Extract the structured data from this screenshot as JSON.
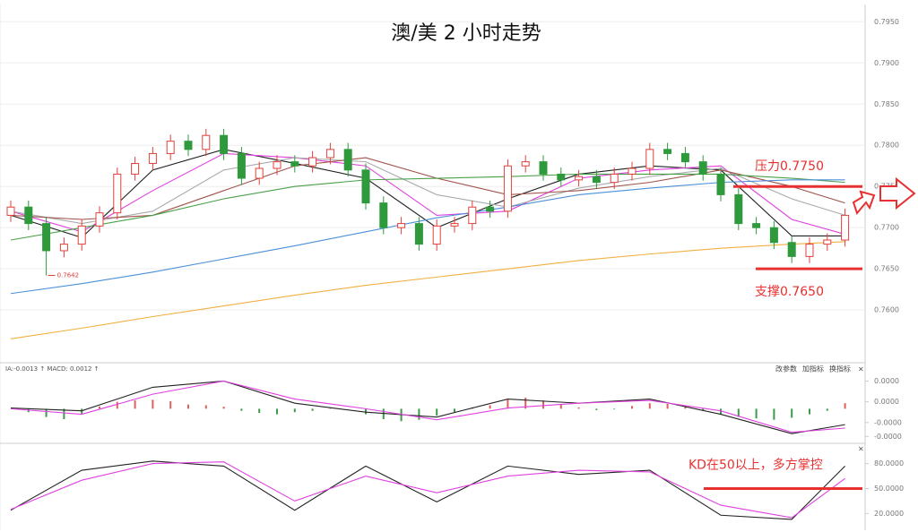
{
  "chart_data": [
    {
      "type": "candlestick",
      "title": "澳/美 2 小时走势",
      "ylim": [
        0.7536,
        0.7971
      ],
      "yticks": [
        {
          "value": 0.795,
          "label": "0.7950"
        },
        {
          "value": 0.79,
          "label": "0.7900"
        },
        {
          "value": 0.785,
          "label": "0.7850"
        },
        {
          "value": 0.78,
          "label": "0.7800"
        },
        {
          "value": 0.775,
          "label": "0.7750"
        },
        {
          "value": 0.77,
          "label": "0.7700"
        },
        {
          "value": 0.765,
          "label": "0.7650"
        },
        {
          "value": 0.76,
          "label": "0.7600"
        }
      ],
      "grid": true,
      "up_color": "#e0403c",
      "down_color": "#2e9a3c",
      "open": [
        0.7715,
        0.7725,
        0.7705,
        0.7672,
        0.768,
        0.7702,
        0.7718,
        0.7765,
        0.7778,
        0.779,
        0.7805,
        0.7795,
        0.7812,
        0.779,
        0.776,
        0.7772,
        0.778,
        0.7775,
        0.7785,
        0.7795,
        0.777,
        0.773,
        0.77,
        0.7705,
        0.768,
        0.7702,
        0.7705,
        0.7725,
        0.772,
        0.7775,
        0.778,
        0.7765,
        0.7758,
        0.7762,
        0.7755,
        0.7765,
        0.7772,
        0.7795,
        0.779,
        0.778,
        0.7765,
        0.774,
        0.7705,
        0.77,
        0.7682,
        0.7665,
        0.768,
        0.7685
      ],
      "high": [
        0.7733,
        0.7733,
        0.7713,
        0.7688,
        0.771,
        0.7726,
        0.7773,
        0.7786,
        0.7798,
        0.7813,
        0.7813,
        0.782,
        0.782,
        0.7798,
        0.778,
        0.7788,
        0.7788,
        0.7793,
        0.7803,
        0.7803,
        0.7778,
        0.7738,
        0.7713,
        0.7713,
        0.771,
        0.7713,
        0.7733,
        0.7733,
        0.7783,
        0.7788,
        0.7788,
        0.7773,
        0.777,
        0.777,
        0.7773,
        0.778,
        0.7803,
        0.7803,
        0.7798,
        0.7788,
        0.7773,
        0.7748,
        0.7713,
        0.7708,
        0.769,
        0.7688,
        0.7693,
        0.7723
      ],
      "low": [
        0.7707,
        0.7697,
        0.7642,
        0.7664,
        0.7672,
        0.7694,
        0.771,
        0.7757,
        0.777,
        0.7782,
        0.7787,
        0.7787,
        0.7782,
        0.7752,
        0.7752,
        0.7764,
        0.7767,
        0.7767,
        0.7777,
        0.7762,
        0.7722,
        0.7692,
        0.7692,
        0.7672,
        0.7672,
        0.7694,
        0.7697,
        0.7712,
        0.7712,
        0.7767,
        0.7757,
        0.775,
        0.775,
        0.7747,
        0.7747,
        0.7757,
        0.7764,
        0.7782,
        0.7772,
        0.7757,
        0.7732,
        0.7697,
        0.7692,
        0.7674,
        0.7657,
        0.7657,
        0.7672,
        0.7677
      ],
      "close": [
        0.7725,
        0.7705,
        0.7672,
        0.768,
        0.7702,
        0.7718,
        0.7765,
        0.7778,
        0.779,
        0.7805,
        0.7795,
        0.7812,
        0.779,
        0.776,
        0.7772,
        0.778,
        0.7775,
        0.7785,
        0.7795,
        0.777,
        0.773,
        0.77,
        0.7705,
        0.768,
        0.7702,
        0.7705,
        0.7725,
        0.772,
        0.7775,
        0.778,
        0.7765,
        0.7758,
        0.7762,
        0.7755,
        0.7765,
        0.7772,
        0.7795,
        0.779,
        0.778,
        0.7765,
        0.774,
        0.7705,
        0.77,
        0.7682,
        0.7665,
        0.768,
        0.7685,
        0.7715
      ],
      "series": [
        {
          "color": "#222222",
          "x": [
            0,
            4,
            8,
            12,
            16,
            20,
            24,
            28,
            32,
            36,
            40,
            44,
            47
          ],
          "values": [
            0.7715,
            0.7688,
            0.777,
            0.7795,
            0.7778,
            0.776,
            0.77,
            0.7735,
            0.7765,
            0.7775,
            0.777,
            0.769,
            0.769
          ]
        },
        {
          "color": "#e040e0",
          "x": [
            0,
            4,
            8,
            12,
            16,
            20,
            24,
            28,
            32,
            36,
            40,
            44,
            47
          ],
          "values": [
            0.772,
            0.7695,
            0.7745,
            0.779,
            0.7785,
            0.7775,
            0.7715,
            0.772,
            0.776,
            0.777,
            0.7775,
            0.771,
            0.7692
          ]
        },
        {
          "color": "#aaaaaa",
          "x": [
            0,
            4,
            8,
            12,
            16,
            20,
            24,
            28,
            32,
            36,
            40,
            44,
            47
          ],
          "values": [
            0.772,
            0.7705,
            0.772,
            0.777,
            0.7785,
            0.778,
            0.774,
            0.7725,
            0.7748,
            0.7762,
            0.7772,
            0.7735,
            0.7715
          ]
        },
        {
          "color": "#a0524a",
          "x": [
            0,
            4,
            8,
            12,
            16,
            20,
            24,
            28,
            32,
            36,
            40,
            44,
            47
          ],
          "values": [
            0.7715,
            0.771,
            0.7715,
            0.7745,
            0.7775,
            0.7785,
            0.776,
            0.774,
            0.7745,
            0.7755,
            0.777,
            0.775,
            0.773
          ]
        },
        {
          "color": "#48a048",
          "x": [
            0,
            4,
            8,
            12,
            16,
            20,
            24,
            28,
            32,
            36,
            40,
            44,
            47
          ],
          "values": [
            0.7685,
            0.77,
            0.7715,
            0.7735,
            0.775,
            0.7758,
            0.776,
            0.7762,
            0.7765,
            0.7765,
            0.7765,
            0.776,
            0.7755
          ]
        },
        {
          "color": "#4a90d8",
          "x": [
            0,
            4,
            8,
            12,
            16,
            20,
            24,
            28,
            32,
            36,
            40,
            44,
            47
          ],
          "values": [
            0.762,
            0.7632,
            0.7646,
            0.7662,
            0.7678,
            0.7695,
            0.7712,
            0.7725,
            0.774,
            0.7748,
            0.7755,
            0.7758,
            0.7758
          ]
        },
        {
          "color": "#f0b040",
          "x": [
            0,
            4,
            8,
            12,
            16,
            20,
            24,
            28,
            32,
            36,
            40,
            44,
            47
          ],
          "values": [
            0.7565,
            0.7578,
            0.7592,
            0.7605,
            0.7618,
            0.763,
            0.764,
            0.765,
            0.766,
            0.7668,
            0.7675,
            0.768,
            0.7683
          ]
        }
      ],
      "low_label": "0.7642",
      "annotations": [
        {
          "text": "压力0.7750",
          "value": 0.775
        },
        {
          "text": "支撑0.7650",
          "value": 0.765
        }
      ],
      "annotation_color": "#e83030"
    },
    {
      "type": "macd",
      "header": "IA:-0.0013 ↑ MACD: 0.0012 ↑",
      "buttons": [
        "改参数",
        "加指标",
        "换指标",
        "×"
      ],
      "ylim": [
        -5e-05,
        6e-05
      ],
      "yticks": [
        {
          "value": 4e-05,
          "label": "0.0000"
        },
        {
          "value": 1e-05,
          "label": "0.0000"
        },
        {
          "value": -2e-05,
          "label": "-0.0000"
        },
        {
          "value": -4e-05,
          "label": "-0.0000"
        }
      ],
      "up_color": "#e0605c",
      "down_color": "#3c9a48",
      "values": [
        0,
        -5e-06,
        -1.2e-05,
        -1.5e-05,
        -8e-06,
        3e-06,
        1e-05,
        1.2e-05,
        1.3e-05,
        1.1e-05,
        6e-06,
        5e-06,
        3e-06,
        -3e-06,
        -6e-06,
        -8e-06,
        -5e-06,
        -3e-06,
        2e-06,
        0,
        -8e-06,
        -1.5e-05,
        -1.8e-05,
        -1.6e-05,
        -1e-05,
        -5e-06,
        2e-06,
        5e-06,
        1.3e-05,
        1.6e-05,
        1.2e-05,
        6e-06,
        2e-06,
        -2e-06,
        -1e-06,
        4e-06,
        8e-06,
        7e-06,
        3e-06,
        -3e-06,
        -8e-06,
        -1.2e-05,
        -1.4e-05,
        -1.6e-05,
        -1.3e-05,
        -8e-06,
        -3e-06,
        8e-06
      ],
      "series": [
        {
          "color": "#222222",
          "x": [
            0,
            4,
            8,
            12,
            16,
            20,
            24,
            28,
            32,
            36,
            40,
            44,
            47
          ],
          "values": [
            1e-06,
            -3e-06,
            3.1e-05,
            4e-05,
            8e-06,
            -5e-06,
            -1.2e-05,
            1.4e-05,
            8e-06,
            1.4e-05,
            -8e-06,
            -3.6e-05,
            -2.3e-05
          ]
        },
        {
          "color": "#e040e0",
          "x": [
            0,
            4,
            8,
            12,
            16,
            20,
            24,
            28,
            32,
            36,
            40,
            44,
            47
          ],
          "values": [
            0,
            -8e-06,
            2.1e-05,
            4e-05,
            1.4e-05,
            0,
            -1.6e-05,
            1e-06,
            8e-06,
            1.2e-05,
            -3e-06,
            -3.4e-05,
            -2.8e-05
          ]
        }
      ]
    },
    {
      "type": "line",
      "close_button": "×",
      "ylim": [
        0,
        100
      ],
      "yticks": [
        {
          "value": 80,
          "label": "80.0000"
        },
        {
          "value": 50,
          "label": "50.0000"
        },
        {
          "value": 20,
          "label": "20.0000"
        }
      ],
      "series": [
        {
          "color": "#222222",
          "x": [
            0,
            4,
            8,
            12,
            16,
            20,
            24,
            28,
            32,
            36,
            40,
            44,
            47
          ],
          "values": [
            24,
            72,
            83,
            77,
            24,
            77,
            34,
            77,
            67,
            72,
            18,
            13,
            77
          ]
        },
        {
          "color": "#e040e0",
          "x": [
            0,
            4,
            8,
            12,
            16,
            20,
            24,
            28,
            32,
            36,
            40,
            44,
            47
          ],
          "values": [
            25,
            60,
            80,
            82,
            35,
            65,
            45,
            65,
            72,
            70,
            30,
            15,
            62
          ]
        }
      ],
      "annotations": [
        {
          "text": "KD在50以上，多方掌控",
          "value": 50
        }
      ],
      "annotation_color": "#e83030"
    }
  ]
}
